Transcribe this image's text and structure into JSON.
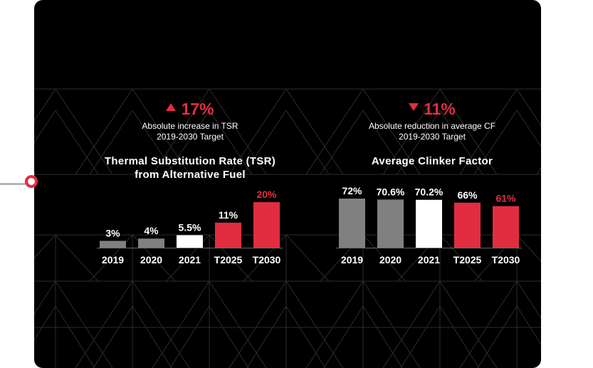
{
  "colors": {
    "background": "#000000",
    "accent_red": "#e22d40",
    "bar_gray": "#808080",
    "bar_white": "#ffffff",
    "text": "#ffffff"
  },
  "connector": {
    "icon": "timeline-node-icon"
  },
  "charts": [
    {
      "headline_icon": "triangle-up-icon",
      "headline_value": "17%",
      "subtitle_line1": "Absolute increase in TSR",
      "subtitle_line2": "2019-2030 Target",
      "title_line1": "Thermal Substitution Rate (TSR)",
      "title_line2": "from Alternative Fuel"
    },
    {
      "headline_icon": "triangle-down-icon",
      "headline_value": "11%",
      "subtitle_line1": "Absolute reduction in average CF",
      "subtitle_line2": "2019-2030 Target",
      "title_line1": "Average Clinker Factor",
      "title_line2": ""
    }
  ],
  "chart_data": [
    {
      "type": "bar",
      "title": "Thermal Substitution Rate (TSR) from Alternative Fuel",
      "categories": [
        "2019",
        "2020",
        "2021",
        "T2025",
        "T2030"
      ],
      "values": [
        3,
        4,
        5.5,
        11,
        20
      ],
      "labels": [
        "3%",
        "4%",
        "5.5%",
        "11%",
        "20%"
      ],
      "bar_colors": [
        "#808080",
        "#808080",
        "#ffffff",
        "#e22d40",
        "#e22d40"
      ],
      "label_colors": [
        "#ffffff",
        "#ffffff",
        "#ffffff",
        "#ffffff",
        "#e22d40"
      ],
      "unit": "%"
    },
    {
      "type": "bar",
      "title": "Average Clinker Factor",
      "categories": [
        "2019",
        "2020",
        "2021",
        "T2025",
        "T2030"
      ],
      "values": [
        72,
        70.6,
        70.2,
        66,
        61
      ],
      "labels": [
        "72%",
        "70.6%",
        "70.2%",
        "66%",
        "61%"
      ],
      "bar_colors": [
        "#808080",
        "#808080",
        "#ffffff",
        "#e22d40",
        "#e22d40"
      ],
      "label_colors": [
        "#ffffff",
        "#ffffff",
        "#ffffff",
        "#ffffff",
        "#e22d40"
      ],
      "unit": "%"
    }
  ]
}
